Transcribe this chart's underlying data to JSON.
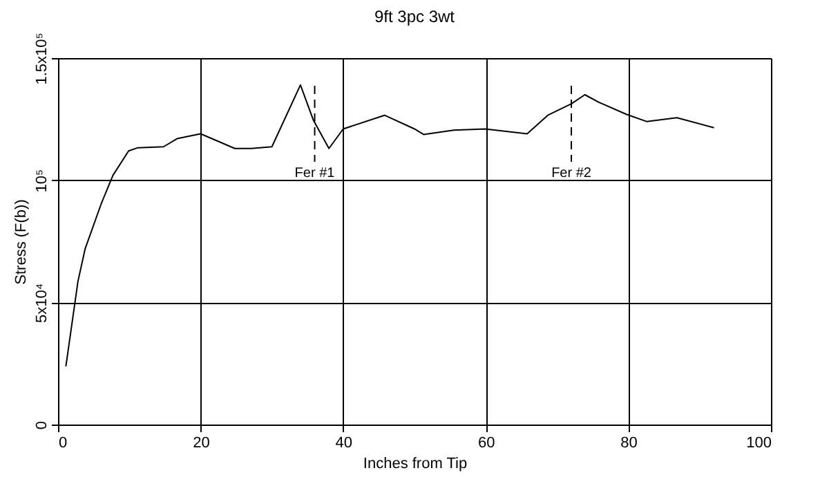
{
  "chart_data": {
    "type": "line",
    "title": "9ft 3pc 3wt",
    "xlabel": "Inches from Tip",
    "ylabel": "Stress (F(b))",
    "x": [
      1.1,
      2.8,
      3.8,
      6.1,
      7.7,
      9.9,
      11.2,
      14.8,
      16.7,
      20,
      24.8,
      27.1,
      30,
      34,
      35.8,
      38,
      40,
      45.8,
      50,
      51.3,
      55.5,
      59.9,
      65.8,
      68.7,
      72,
      73.9,
      75.8,
      79.7,
      82.6,
      86.8,
      92
    ],
    "series": [
      {
        "color": "#000000",
        "values": [
          23800,
          58700,
          71900,
          90700,
          102000,
          112000,
          113300,
          113700,
          117000,
          119000,
          113000,
          113000,
          113700,
          139000,
          124700,
          113000,
          121000,
          126600,
          121000,
          118700,
          120500,
          121000,
          119000,
          126600,
          131300,
          135000,
          132000,
          127000,
          124000,
          125600,
          121500
        ]
      }
    ],
    "xlim": [
      0,
      100
    ],
    "xticks": [
      0,
      20,
      40,
      60,
      80,
      100
    ],
    "ylim": [
      0,
      150000
    ],
    "yticks": [
      0,
      {
        "value": 50000,
        "label": "5x10⁴"
      },
      {
        "value": 100000,
        "label": "10⁵"
      },
      {
        "value": 150000,
        "label": "1.5x10⁵"
      }
    ],
    "ref_lines": [
      {
        "axis": "x",
        "value": 36,
        "label": "Fer #1",
        "line_style": "dashed"
      },
      {
        "axis": "x",
        "value": 72,
        "label": "Fer #2",
        "line_style": "dashed"
      }
    ],
    "grid": true,
    "marker": "none",
    "line_style": "solid"
  }
}
